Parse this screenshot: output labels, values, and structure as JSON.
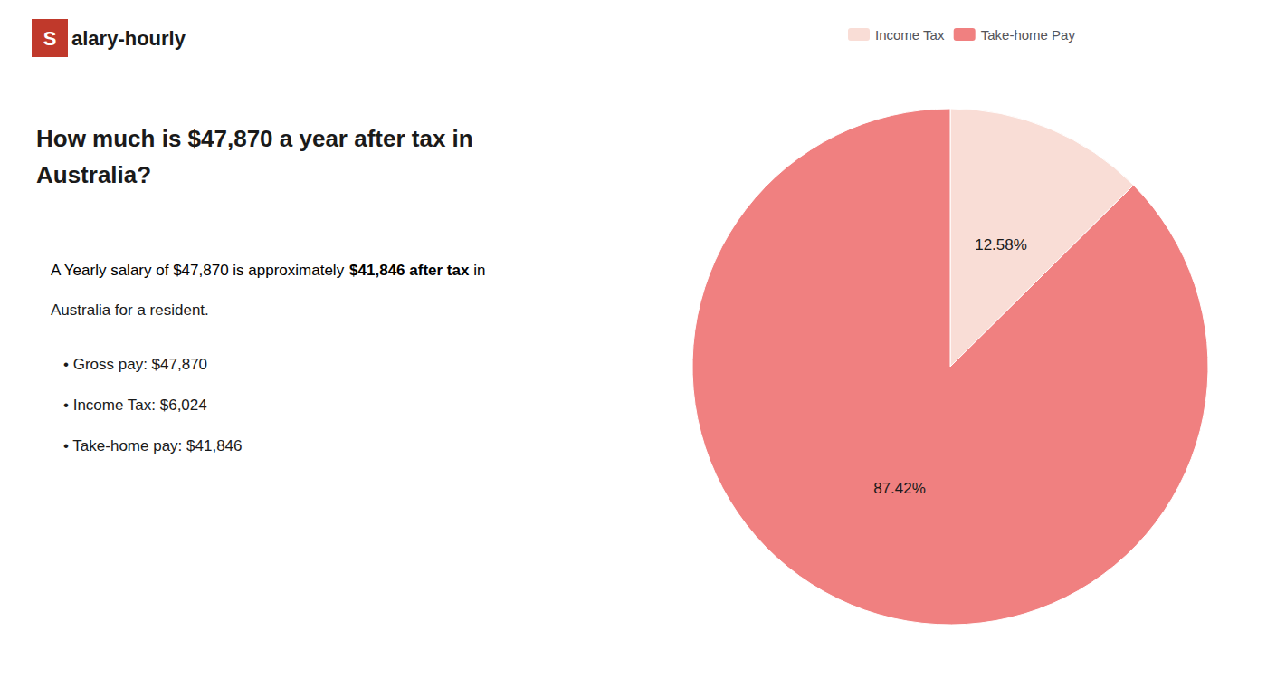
{
  "chart_data": {
    "type": "pie",
    "title": "How much is $47,870 a year after tax in\nAustralia?",
    "categories": [
      "Income Tax",
      "Take-home Pay"
    ],
    "values": [
      12.58,
      87.42
    ],
    "value_labels": [
      "12.58%",
      "87.42%"
    ],
    "colors": [
      "#f9ddd6",
      "#f08080"
    ],
    "data_labels": true,
    "legend": "top",
    "annotations": [
      {
        "text": "S",
        "color": "#c0392b"
      },
      {
        "text": "alary-hourly"
      },
      {
        "text": "A Yearly salary of $47,870 is approximately "
      },
      {
        "text": "$41,846 after tax",
        "color": "#c0392b"
      },
      {
        "text": " in"
      },
      {
        "text": "Australia for a resident."
      },
      {
        "text": "• Gross pay: $47,870"
      },
      {
        "text": "• Income Tax: $6,024"
      },
      {
        "text": "• Take-home pay: $41,846"
      }
    ]
  }
}
